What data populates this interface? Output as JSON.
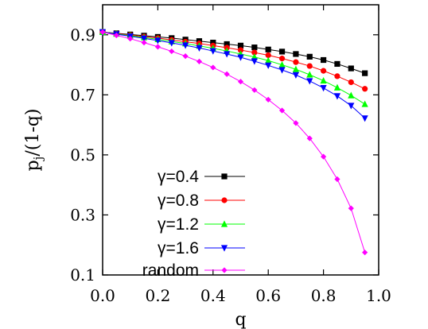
{
  "chart_data": {
    "type": "line",
    "xlabel": "q",
    "ylabel": "p",
    "ylabel_sub": "j",
    "ylabel_rest": "/(1-q)",
    "xlim": [
      0.0,
      1.0
    ],
    "ylim": [
      0.1,
      1.0
    ],
    "x_ticks": [
      0.0,
      0.2,
      0.4,
      0.6,
      0.8,
      1.0
    ],
    "x_tick_labels": [
      "0.0",
      "0.2",
      "0.4",
      "0.6",
      "0.8",
      "1.0"
    ],
    "y_ticks": [
      0.1,
      0.3,
      0.5,
      0.7,
      0.9
    ],
    "y_tick_labels": [
      "0.1",
      "0.3",
      "0.5",
      "0.7",
      "0.9"
    ],
    "grid": false,
    "legend_position": "bottom-left",
    "x": [
      0.0,
      0.05,
      0.1,
      0.15,
      0.2,
      0.25,
      0.3,
      0.35,
      0.4,
      0.45,
      0.5,
      0.55,
      0.6,
      0.65,
      0.7,
      0.75,
      0.8,
      0.85,
      0.9,
      0.95
    ],
    "series": [
      {
        "name": "γ=0.4",
        "color": "#000000",
        "marker": "square",
        "values": [
          0.909,
          0.905,
          0.901,
          0.897,
          0.893,
          0.889,
          0.884,
          0.879,
          0.874,
          0.869,
          0.864,
          0.858,
          0.851,
          0.844,
          0.836,
          0.827,
          0.816,
          0.803,
          0.788,
          0.772
        ]
      },
      {
        "name": "γ=0.8",
        "color": "#ff0000",
        "marker": "circle",
        "values": [
          0.909,
          0.904,
          0.899,
          0.894,
          0.889,
          0.883,
          0.877,
          0.871,
          0.864,
          0.857,
          0.849,
          0.841,
          0.832,
          0.821,
          0.809,
          0.796,
          0.78,
          0.762,
          0.742,
          0.72
        ]
      },
      {
        "name": "γ=1.2",
        "color": "#00ff00",
        "marker": "triangle-up",
        "values": [
          0.909,
          0.903,
          0.897,
          0.891,
          0.885,
          0.878,
          0.871,
          0.863,
          0.855,
          0.846,
          0.836,
          0.826,
          0.814,
          0.8,
          0.785,
          0.767,
          0.747,
          0.724,
          0.698,
          0.669
        ]
      },
      {
        "name": "γ=1.6",
        "color": "#0000ff",
        "marker": "triangle-down",
        "values": [
          0.909,
          0.902,
          0.895,
          0.888,
          0.881,
          0.873,
          0.865,
          0.856,
          0.846,
          0.836,
          0.825,
          0.812,
          0.798,
          0.783,
          0.766,
          0.746,
          0.723,
          0.696,
          0.664,
          0.622
        ]
      },
      {
        "name": "random",
        "color": "#ff00ff",
        "marker": "diamond",
        "values": [
          0.909,
          0.898,
          0.887,
          0.874,
          0.86,
          0.845,
          0.829,
          0.811,
          0.791,
          0.769,
          0.744,
          0.716,
          0.684,
          0.648,
          0.606,
          0.555,
          0.494,
          0.419,
          0.322,
          0.175
        ]
      }
    ]
  }
}
